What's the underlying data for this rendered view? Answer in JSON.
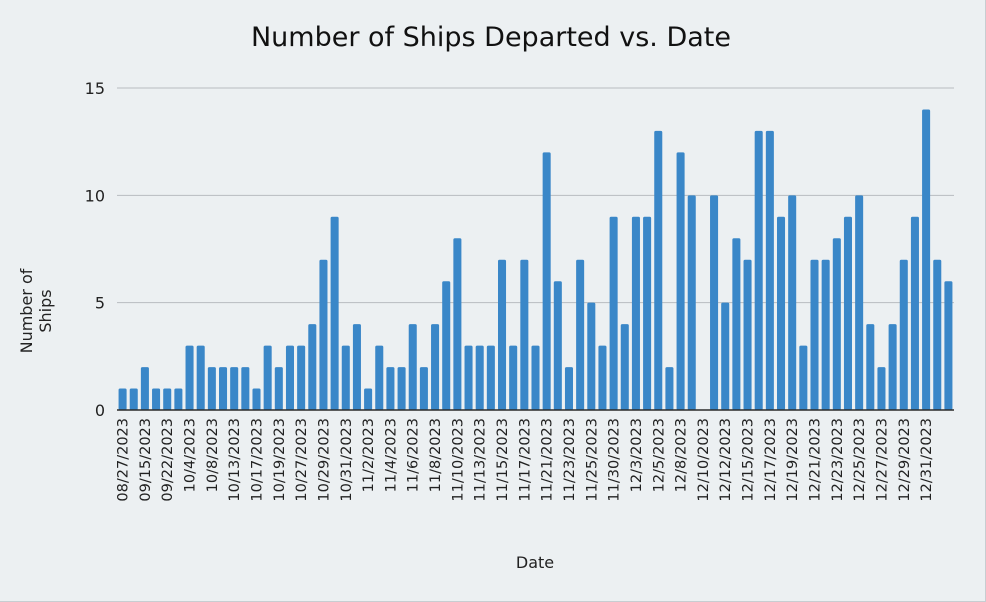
{
  "chart_data": {
    "type": "bar",
    "title": "Number of Ships Departed vs. Date",
    "xlabel": "Date",
    "ylabel": "Number of Ships",
    "ylim": [
      0,
      15
    ],
    "yticks": [
      0,
      5,
      10,
      15
    ],
    "grid": true,
    "bar_color": "#3a87c8",
    "x_tick_labels": [
      "08/27/2023",
      "09/15/2023",
      "09/22/2023",
      "10/4/2023",
      "10/8/2023",
      "10/13/2023",
      "10/17/2023",
      "10/19/2023",
      "10/27/2023",
      "10/29/2023",
      "10/31/2023",
      "11/2/2023",
      "11/4/2023",
      "11/6/2023",
      "11/8/2023",
      "11/10/2023",
      "11/13/2023",
      "11/15/2023",
      "11/17/2023",
      "11/21/2023",
      "11/23/2023",
      "11/25/2023",
      "11/30/2023",
      "12/3/2023",
      "12/5/2023",
      "12/8/2023",
      "12/10/2023",
      "12/12/2023",
      "12/15/2023",
      "12/17/2023",
      "12/19/2023",
      "12/21/2023",
      "12/23/2023",
      "12/25/2023",
      "12/27/2023",
      "12/29/2023",
      "12/31/2023"
    ],
    "values": [
      1,
      1,
      2,
      1,
      1,
      1,
      3,
      3,
      2,
      2,
      2,
      2,
      1,
      3,
      2,
      3,
      3,
      4,
      7,
      9,
      3,
      4,
      1,
      3,
      2,
      2,
      4,
      2,
      4,
      6,
      8,
      3,
      3,
      3,
      7,
      3,
      7,
      3,
      12,
      6,
      2,
      7,
      5,
      3,
      9,
      4,
      9,
      9,
      13,
      2,
      12,
      10,
      0,
      10,
      5,
      8,
      7,
      13,
      13,
      9,
      10,
      3,
      7,
      7,
      8,
      9,
      10,
      4,
      2,
      4,
      7,
      9,
      14,
      7,
      6
    ]
  }
}
